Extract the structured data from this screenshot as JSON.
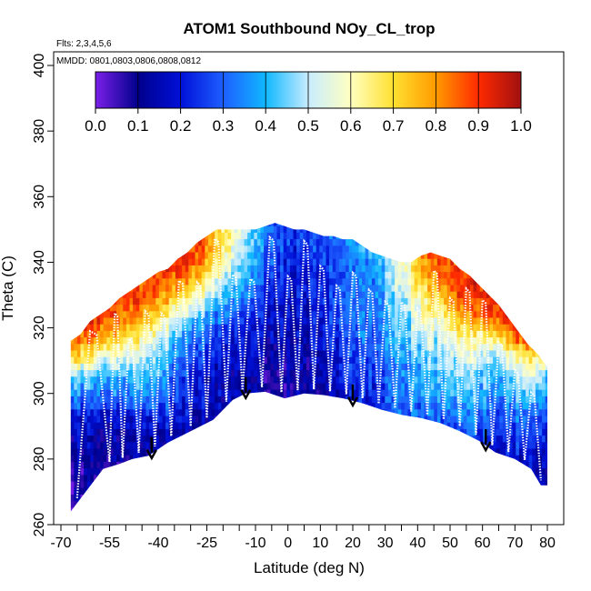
{
  "chart_data": {
    "type": "heatmap",
    "title": "ATOM1 Southbound NOy_CL_trop",
    "flights_note": "Flts: 2,3,4,5,6",
    "dates_note": "MMDD: 0801,0803,0806,0808,0812",
    "xlabel": "Latitude (deg N)",
    "ylabel": "Theta (C)",
    "xlim": [
      -70,
      82
    ],
    "ylim": [
      260,
      402
    ],
    "x_ticks_major": [
      -70,
      -55,
      -40,
      -25,
      -10,
      0,
      10,
      20,
      30,
      40,
      50,
      60,
      70,
      80
    ],
    "x_ticks_minor": [
      -65,
      -60,
      -50,
      -45,
      -35,
      -30,
      -20,
      -15,
      -5,
      5,
      15,
      25,
      35,
      45,
      55,
      65,
      75
    ],
    "y_ticks": [
      260,
      280,
      300,
      320,
      340,
      360,
      380,
      400
    ],
    "colorbar": {
      "ticks": [
        "0.0",
        "0.1",
        "0.2",
        "0.3",
        "0.4",
        "0.5",
        "0.6",
        "0.7",
        "0.8",
        "0.9",
        "1.0"
      ],
      "range": [
        0,
        1
      ],
      "stops": [
        "#7b1fe8",
        "#00008b",
        "#0010d8",
        "#1e5eff",
        "#10b8ff",
        "#c8ecff",
        "#ffffc0",
        "#ffe030",
        "#ff9a00",
        "#ff2a00",
        "#a01010"
      ]
    },
    "surface_boundary": {
      "lat": [
        -67,
        -57,
        -52,
        -48,
        -43,
        -37,
        -30,
        -23,
        -17,
        -13,
        -7,
        -1,
        5,
        11,
        17,
        23,
        29,
        35,
        41,
        47,
        53,
        59,
        64,
        70,
        75,
        78,
        80
      ],
      "theta": [
        264,
        277,
        278.5,
        280,
        281,
        285,
        288.5,
        292,
        298,
        300,
        300.5,
        298.5,
        300,
        299.5,
        298.5,
        297,
        295,
        293.5,
        292.5,
        291,
        288.5,
        285.5,
        282,
        280,
        277,
        272,
        272
      ]
    },
    "top_boundary": {
      "lat": [
        -67,
        -64,
        -61,
        -58,
        -55,
        -52,
        -49,
        -46,
        -43,
        -40,
        -37,
        -34,
        -31,
        -28,
        -25,
        -22,
        -19,
        -16,
        -13,
        -10,
        -7,
        -4,
        -1,
        2,
        5,
        8,
        11,
        14,
        17,
        20,
        23,
        26,
        29,
        32,
        35,
        38,
        41,
        44,
        47,
        50,
        53,
        56,
        59,
        62,
        65,
        68,
        71,
        74,
        77,
        80
      ],
      "theta": [
        316,
        318,
        322,
        324,
        326,
        329,
        331,
        333,
        335,
        337,
        338,
        341,
        343,
        346,
        348,
        350,
        350,
        350,
        350,
        350,
        351,
        352,
        351,
        350,
        350,
        349,
        348,
        348,
        347,
        347,
        345,
        343,
        342,
        341,
        340,
        340,
        342,
        343,
        342,
        341,
        338,
        336,
        333,
        330,
        327,
        323,
        319,
        315,
        312,
        308
      ]
    },
    "profile_minima": [
      -65,
      -55,
      -51,
      -46,
      -41,
      -36,
      -30,
      -25,
      -19,
      -14,
      -8,
      -2,
      3,
      8,
      13,
      18,
      23,
      28,
      33,
      38,
      43,
      48,
      53,
      58,
      63,
      68,
      73,
      78
    ],
    "arrows_lat": [
      -42,
      -13,
      20,
      61
    ],
    "field_controls": {
      "lat": [
        -67,
        -60,
        -50,
        -42,
        -35,
        -28,
        -20,
        -12,
        -5,
        0,
        5,
        10,
        15,
        20,
        25,
        30,
        35,
        40,
        45,
        50,
        55,
        60,
        65,
        70,
        75,
        80
      ],
      "theta": [
        276,
        282,
        288,
        294,
        300,
        306,
        312,
        318,
        324,
        330,
        336,
        342,
        348
      ],
      "grid": [
        [
          0.1,
          0.08,
          0.1,
          0.12,
          0.1,
          0.1,
          0.08,
          0.1,
          0.1,
          0.1,
          0.12,
          0.1,
          0.1,
          0.12,
          0.1,
          0.1,
          0.12,
          0.15,
          0.12,
          0.12,
          0.15,
          0.15,
          0.15,
          0.15,
          0.15,
          0.12
        ],
        [
          0.12,
          0.1,
          0.12,
          0.15,
          0.12,
          0.12,
          0.1,
          0.1,
          0.1,
          0.08,
          0.1,
          0.1,
          0.1,
          0.12,
          0.12,
          0.15,
          0.18,
          0.2,
          0.18,
          0.2,
          0.25,
          0.22,
          0.2,
          0.18,
          0.2,
          0.18
        ],
        [
          0.15,
          0.12,
          0.15,
          0.18,
          0.15,
          0.12,
          0.1,
          0.12,
          0.1,
          0.1,
          0.1,
          0.1,
          0.12,
          0.15,
          0.18,
          0.22,
          0.25,
          0.22,
          0.25,
          0.28,
          0.3,
          0.25,
          0.22,
          0.25,
          0.28,
          0.22
        ],
        [
          0.2,
          0.18,
          0.2,
          0.25,
          0.2,
          0.15,
          0.12,
          0.12,
          0.1,
          0.1,
          0.1,
          0.12,
          0.15,
          0.18,
          0.2,
          0.25,
          0.3,
          0.28,
          0.3,
          0.32,
          0.35,
          0.3,
          0.28,
          0.3,
          0.32,
          0.28
        ],
        [
          0.35,
          0.3,
          0.35,
          0.38,
          0.25,
          0.18,
          0.15,
          0.12,
          0.1,
          0.1,
          0.12,
          0.12,
          0.15,
          0.2,
          0.22,
          0.28,
          0.32,
          0.35,
          0.35,
          0.4,
          0.42,
          0.38,
          0.35,
          0.4,
          0.45,
          0.35
        ],
        [
          0.45,
          0.4,
          0.42,
          0.45,
          0.3,
          0.2,
          0.15,
          0.12,
          0.1,
          0.12,
          0.12,
          0.15,
          0.18,
          0.22,
          0.25,
          0.3,
          0.35,
          0.38,
          0.4,
          0.45,
          0.48,
          0.42,
          0.4,
          0.48,
          0.55,
          0.45
        ],
        [
          0.75,
          0.6,
          0.55,
          0.5,
          0.35,
          0.25,
          0.18,
          0.15,
          0.12,
          0.12,
          0.15,
          0.15,
          0.2,
          0.25,
          0.28,
          0.32,
          0.38,
          0.42,
          0.45,
          0.5,
          0.55,
          0.5,
          0.5,
          0.6,
          0.7,
          0.6
        ],
        [
          0.85,
          0.8,
          0.7,
          0.6,
          0.4,
          0.3,
          0.22,
          0.18,
          0.15,
          0.15,
          0.15,
          0.18,
          0.22,
          0.28,
          0.3,
          0.35,
          0.4,
          0.48,
          0.5,
          0.58,
          0.65,
          0.62,
          0.7,
          0.85,
          0.9,
          0.8
        ],
        [
          0.9,
          0.9,
          0.85,
          0.75,
          0.55,
          0.4,
          0.3,
          0.22,
          0.18,
          0.15,
          0.18,
          0.2,
          0.25,
          0.3,
          0.32,
          0.38,
          0.45,
          0.55,
          0.6,
          0.7,
          0.8,
          0.85,
          0.9,
          0.95,
          0.95,
          0.9
        ],
        [
          0.9,
          0.9,
          0.9,
          0.85,
          0.7,
          0.55,
          0.4,
          0.3,
          0.2,
          0.18,
          0.2,
          0.22,
          0.25,
          0.3,
          0.35,
          0.4,
          0.5,
          0.62,
          0.72,
          0.82,
          0.9,
          0.92,
          0.95,
          0.95,
          0.95,
          0.95
        ],
        [
          0.9,
          0.9,
          0.9,
          0.9,
          0.85,
          0.75,
          0.5,
          0.35,
          0.25,
          0.2,
          0.2,
          0.22,
          0.25,
          0.3,
          0.35,
          0.42,
          0.55,
          0.7,
          0.8,
          0.88,
          0.92,
          0.95,
          0.95,
          0.95,
          0.95,
          0.95
        ],
        [
          0.9,
          0.9,
          0.9,
          0.9,
          0.95,
          0.85,
          0.6,
          0.4,
          0.28,
          0.22,
          0.22,
          0.25,
          0.28,
          0.32,
          0.38,
          0.45,
          0.6,
          0.75,
          0.85,
          0.9,
          0.95,
          0.95,
          0.95,
          0.95,
          0.95,
          0.95
        ],
        [
          0.9,
          0.9,
          0.9,
          0.9,
          0.95,
          0.9,
          0.65,
          0.45,
          0.3,
          0.25,
          0.25,
          0.28,
          0.3,
          0.35,
          0.4,
          0.5,
          0.65,
          0.8,
          0.9,
          0.92,
          0.95,
          0.95,
          0.95,
          0.95,
          0.95,
          0.95
        ]
      ]
    }
  }
}
